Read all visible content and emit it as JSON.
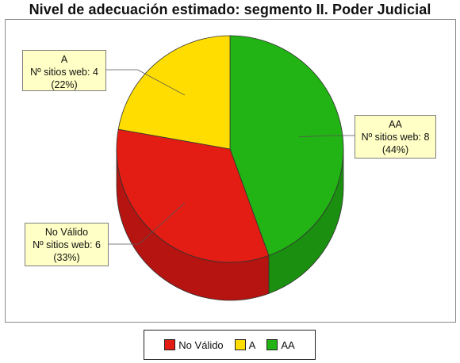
{
  "chart_data": {
    "type": "pie",
    "title": "Nivel de adecuación estimado: segmento II. Poder Judicial",
    "slices": [
      {
        "label": "AA",
        "count_label": "Nº sitios web: 8",
        "percent_label": "(44%)",
        "value": 8,
        "percent": 44,
        "color": "#22b314",
        "side_color": "#1b8f10"
      },
      {
        "label": "No Válido",
        "count_label": "Nº sitios web: 6",
        "percent_label": "(33%)",
        "value": 6,
        "percent": 33,
        "color": "#e31c14",
        "side_color": "#b51410"
      },
      {
        "label": "A",
        "count_label": "Nº sitios web: 4",
        "percent_label": "(22%)",
        "value": 4,
        "percent": 22,
        "color": "#ffdd00",
        "side_color": "#ccb100"
      }
    ],
    "legend": [
      "No Válido",
      "A",
      "AA"
    ],
    "legend_colors": [
      "#e31c14",
      "#ffdd00",
      "#22b314"
    ],
    "legend_placement": "bottom"
  }
}
